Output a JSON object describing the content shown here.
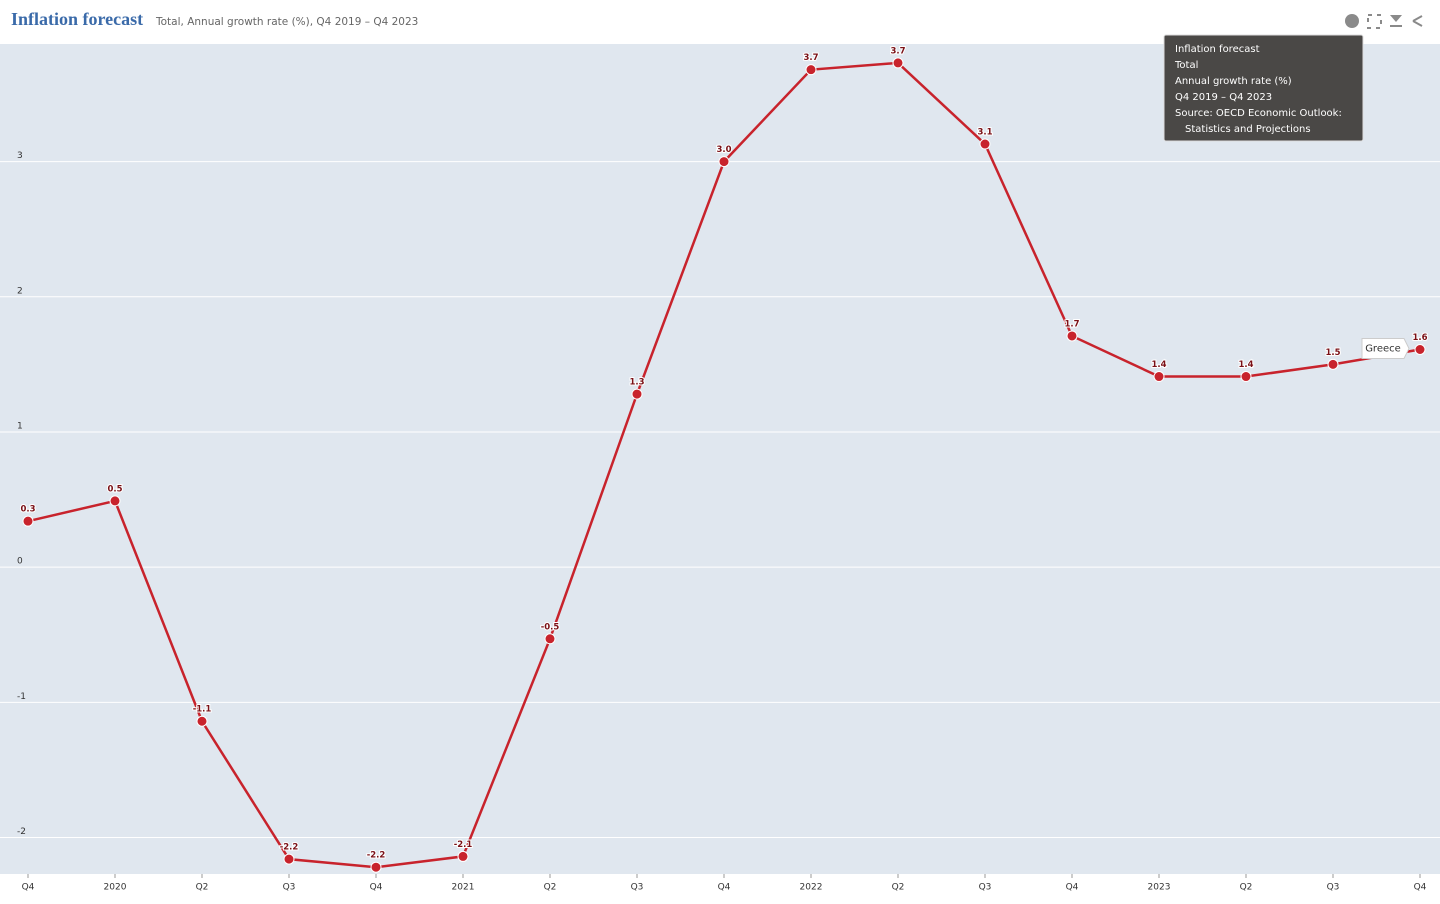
{
  "chart_data": {
    "type": "line",
    "title": "Inflation forecast",
    "subtitle": "Total, Annual growth rate (%), Q4 2019 – Q4 2023",
    "categories": [
      "Q4",
      "2020",
      "Q2",
      "Q3",
      "Q4",
      "2021",
      "Q2",
      "Q3",
      "Q4",
      "2022",
      "Q2",
      "Q3",
      "Q4",
      "2023",
      "Q2",
      "Q3",
      "Q4"
    ],
    "series": [
      {
        "name": "Greece",
        "color": "#c8232c",
        "values": [
          0.34,
          0.49,
          -1.14,
          -2.16,
          -2.22,
          -2.14,
          -0.53,
          1.28,
          3.0,
          3.68,
          3.73,
          3.13,
          1.71,
          1.41,
          1.41,
          1.5,
          1.61
        ],
        "value_labels": [
          "0.3",
          "0.5",
          "-1.1",
          "-2.2",
          "-2.2",
          "-2.1",
          "-0.5",
          "1.3",
          "3.0",
          "3.7",
          "3.7",
          "3.1",
          "1.7",
          "1.4",
          "1.4",
          "1.5",
          "1.6"
        ]
      }
    ],
    "ylim": [
      -2.27,
      3.87
    ],
    "yticks": [
      -2,
      -1,
      0,
      1,
      2,
      3
    ],
    "grid": true,
    "tooltip": {
      "lines": [
        "Inflation forecast",
        "Total",
        "Annual growth rate (%)",
        "Q4 2019 – Q4 2023",
        "Source: OECD Economic Outlook:",
        "Statistics and Projections"
      ]
    }
  }
}
